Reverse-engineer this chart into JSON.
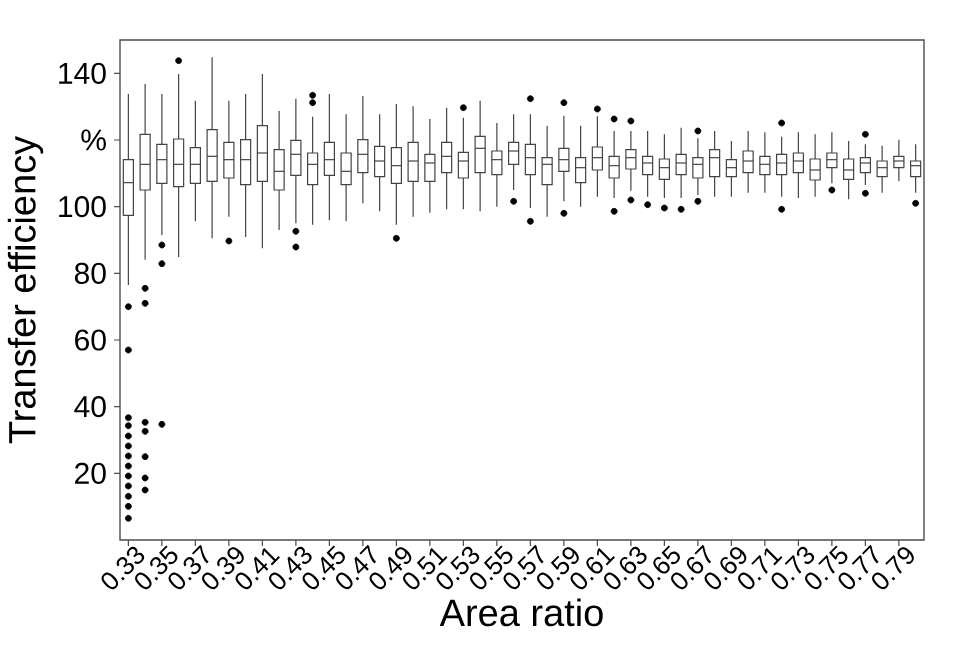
{
  "chart_data": {
    "type": "box",
    "xlabel": "Area ratio",
    "ylabel": "Transfer efficiency",
    "categories": [
      "0.33",
      null,
      "0.35",
      null,
      "0.37",
      null,
      "0.39",
      null,
      "0.41",
      null,
      "0.43",
      null,
      "0.45",
      null,
      "0.47",
      null,
      "0.49",
      null,
      "0.51",
      null,
      "0.53",
      null,
      "0.55",
      null,
      "0.57",
      null,
      "0.59",
      null,
      "0.61",
      null,
      "0.63",
      null,
      "0.65",
      null,
      "0.67",
      null,
      "0.69",
      null,
      "0.71",
      null,
      "0.73",
      null,
      "0.75",
      null,
      "0.77",
      null,
      "0.79",
      null
    ],
    "ylim": [
      0,
      150
    ],
    "yticks": [
      20,
      40,
      60,
      80,
      100,
      {
        "value": 120,
        "label": "%"
      },
      140
    ],
    "series": [
      {
        "color": "#444444",
        "boxes": [
          {
            "low": 76.5,
            "q1": 97.4,
            "median": 107.2,
            "q3": 114.1,
            "high": 133.8,
            "outliers": [
              70.0,
              57.0,
              36.7,
              34.3,
              31.2,
              28.2,
              25.2,
              22.2,
              19.2,
              16.2,
              13.1,
              10.1,
              6.5
            ]
          },
          {
            "low": 84.1,
            "q1": 105.0,
            "median": 112.7,
            "q3": 121.7,
            "high": 136.8,
            "outliers": [
              75.5,
              71.0,
              35.3,
              32.6,
              25.0,
              18.6,
              15.0
            ]
          },
          {
            "low": 91.5,
            "q1": 107.0,
            "median": 114.1,
            "q3": 118.7,
            "high": 133.8,
            "outliers": [
              88.5,
              82.9,
              34.7
            ]
          },
          {
            "low": 84.9,
            "q1": 106.0,
            "median": 112.7,
            "q3": 120.3,
            "high": 139.8,
            "outliers": [
              143.8
            ]
          },
          {
            "low": 95.6,
            "q1": 107.0,
            "median": 112.7,
            "q3": 117.7,
            "high": 131.8
          },
          {
            "low": 90.5,
            "q1": 107.6,
            "median": 115.1,
            "q3": 123.1,
            "high": 144.8
          },
          {
            "low": 97.0,
            "q1": 108.6,
            "median": 114.1,
            "q3": 119.3,
            "high": 131.8,
            "outliers": [
              89.7
            ]
          },
          {
            "low": 90.9,
            "q1": 106.6,
            "median": 114.1,
            "q3": 120.1,
            "high": 133.8
          },
          {
            "low": 87.5,
            "q1": 107.6,
            "median": 116.1,
            "q3": 124.3,
            "high": 139.8
          },
          {
            "low": 93.0,
            "q1": 105.0,
            "median": 110.6,
            "q3": 117.1,
            "high": 128.7
          },
          {
            "low": 95.0,
            "q1": 109.4,
            "median": 115.7,
            "q3": 119.9,
            "high": 132.4,
            "outliers": [
              92.6,
              87.9
            ]
          },
          {
            "low": 94.6,
            "q1": 106.6,
            "median": 112.7,
            "q3": 116.1,
            "high": 127.0,
            "outliers": [
              133.4,
              131.2
            ]
          },
          {
            "low": 95.9,
            "q1": 109.4,
            "median": 114.1,
            "q3": 119.3,
            "high": 133.8
          },
          {
            "low": 95.6,
            "q1": 106.6,
            "median": 110.6,
            "q3": 116.1,
            "high": 127.7
          },
          {
            "low": 101.0,
            "q1": 110.2,
            "median": 115.7,
            "q3": 120.1,
            "high": 133.2
          },
          {
            "low": 98.6,
            "q1": 109.0,
            "median": 113.7,
            "q3": 118.1,
            "high": 127.7
          },
          {
            "low": 94.6,
            "q1": 107.0,
            "median": 112.3,
            "q3": 117.7,
            "high": 130.8,
            "outliers": [
              90.5
            ]
          },
          {
            "low": 97.0,
            "q1": 107.6,
            "median": 113.7,
            "q3": 119.3,
            "high": 130.1
          },
          {
            "low": 98.2,
            "q1": 107.6,
            "median": 113.1,
            "q3": 115.7,
            "high": 126.3
          },
          {
            "low": 99.2,
            "q1": 110.2,
            "median": 115.1,
            "q3": 119.3,
            "high": 129.7
          },
          {
            "low": 99.2,
            "q1": 108.6,
            "median": 113.7,
            "q3": 116.3,
            "high": 126.7,
            "outliers": [
              129.7
            ]
          },
          {
            "low": 98.6,
            "q1": 110.2,
            "median": 117.5,
            "q3": 121.1,
            "high": 131.8
          },
          {
            "low": 100.0,
            "q1": 109.6,
            "median": 114.1,
            "q3": 116.7,
            "high": 125.1
          },
          {
            "low": 105.0,
            "q1": 112.7,
            "median": 116.7,
            "q3": 119.3,
            "high": 127.7,
            "outliers": [
              101.6
            ]
          },
          {
            "low": 99.6,
            "q1": 109.6,
            "median": 114.7,
            "q3": 118.7,
            "high": 127.7,
            "outliers": [
              132.4,
              95.6
            ]
          },
          {
            "low": 97.0,
            "q1": 106.6,
            "median": 112.7,
            "q3": 114.7,
            "high": 124.3
          },
          {
            "low": 101.6,
            "q1": 110.6,
            "median": 114.1,
            "q3": 117.5,
            "high": 127.3,
            "outliers": [
              131.2,
              98.0
            ]
          },
          {
            "low": 100.0,
            "q1": 107.2,
            "median": 111.7,
            "q3": 114.7,
            "high": 124.3
          },
          {
            "low": 103.0,
            "q1": 111.0,
            "median": 114.7,
            "q3": 117.9,
            "high": 127.1,
            "outliers": [
              129.3
            ]
          },
          {
            "low": 102.6,
            "q1": 108.6,
            "median": 112.3,
            "q3": 115.1,
            "high": 122.7,
            "outliers": [
              126.3,
              98.6
            ]
          },
          {
            "low": 104.8,
            "q1": 111.3,
            "median": 114.7,
            "q3": 117.1,
            "high": 122.7,
            "outliers": [
              125.7,
              102.0
            ]
          },
          {
            "low": 103.0,
            "q1": 109.6,
            "median": 113.1,
            "q3": 115.1,
            "high": 122.7,
            "outliers": [
              100.6
            ]
          },
          {
            "low": 102.6,
            "q1": 108.2,
            "median": 111.7,
            "q3": 114.3,
            "high": 121.7,
            "outliers": [
              99.6
            ]
          },
          {
            "low": 102.6,
            "q1": 109.6,
            "median": 113.1,
            "q3": 115.7,
            "high": 123.7,
            "outliers": [
              99.2
            ]
          },
          {
            "low": 103.5,
            "q1": 108.6,
            "median": 112.7,
            "q3": 114.7,
            "high": 120.5,
            "outliers": [
              122.7,
              101.6
            ]
          },
          {
            "low": 103.0,
            "q1": 109.0,
            "median": 114.7,
            "q3": 117.1,
            "high": 122.7
          },
          {
            "low": 103.0,
            "q1": 109.0,
            "median": 111.7,
            "q3": 114.1,
            "high": 119.7
          },
          {
            "low": 104.2,
            "q1": 110.2,
            "median": 113.7,
            "q3": 116.7,
            "high": 122.7
          },
          {
            "low": 104.2,
            "q1": 109.6,
            "median": 112.7,
            "q3": 115.1,
            "high": 122.3
          },
          {
            "low": 103.0,
            "q1": 109.6,
            "median": 113.1,
            "q3": 115.7,
            "high": 121.0,
            "outliers": [
              125.1,
              99.2
            ]
          },
          {
            "low": 102.6,
            "q1": 110.2,
            "median": 113.7,
            "q3": 116.1,
            "high": 122.3
          },
          {
            "low": 103.0,
            "q1": 108.0,
            "median": 111.0,
            "q3": 114.3,
            "high": 121.7
          },
          {
            "low": 107.0,
            "q1": 111.7,
            "median": 114.1,
            "q3": 116.1,
            "high": 122.3,
            "outliers": [
              105.0
            ]
          },
          {
            "low": 102.2,
            "q1": 108.2,
            "median": 111.0,
            "q3": 114.3,
            "high": 119.7
          },
          {
            "low": 106.5,
            "q1": 110.2,
            "median": 113.1,
            "q3": 114.7,
            "high": 118.7,
            "outliers": [
              121.7,
              104.0
            ]
          },
          {
            "low": 104.2,
            "q1": 109.0,
            "median": 111.7,
            "q3": 113.7,
            "high": 118.3
          },
          {
            "low": 107.6,
            "q1": 111.7,
            "median": 113.7,
            "q3": 115.1,
            "high": 120.1
          },
          {
            "low": 104.2,
            "q1": 109.0,
            "median": 112.3,
            "q3": 113.7,
            "high": 118.7,
            "outliers": [
              101.0
            ]
          }
        ]
      }
    ]
  }
}
